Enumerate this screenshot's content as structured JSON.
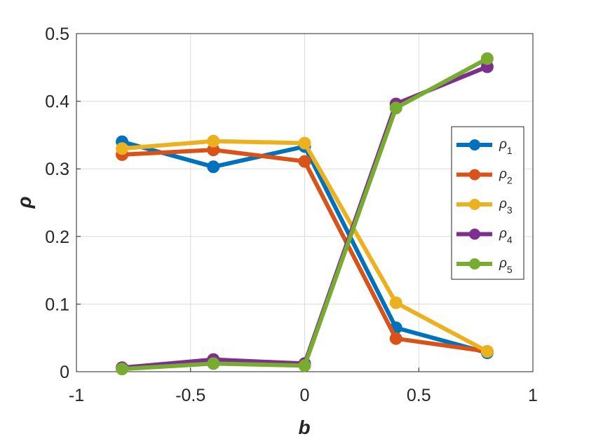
{
  "chart_data": {
    "type": "line",
    "xlabel": "b",
    "ylabel": "ρ",
    "xlim": [
      -1,
      1
    ],
    "ylim": [
      0,
      0.5
    ],
    "xticks": [
      "-1",
      "-0.5",
      "0",
      "0.5",
      "1"
    ],
    "yticks": [
      "0",
      "0.1",
      "0.2",
      "0.3",
      "0.4",
      "0.5"
    ],
    "grid": true,
    "legend_position": "right",
    "x": [
      -0.8,
      -0.4,
      0,
      0.4,
      0.8
    ],
    "series": [
      {
        "name": "ρ",
        "subscript": "1",
        "color": "#0072BD",
        "values": [
          0.34,
          0.303,
          0.333,
          0.065,
          0.028
        ]
      },
      {
        "name": "ρ",
        "subscript": "2",
        "color": "#D95319",
        "values": [
          0.321,
          0.328,
          0.311,
          0.049,
          0.03
        ]
      },
      {
        "name": "ρ",
        "subscript": "3",
        "color": "#EDB120",
        "values": [
          0.33,
          0.341,
          0.338,
          0.102,
          0.03
        ]
      },
      {
        "name": "ρ",
        "subscript": "4",
        "color": "#7E2F8E",
        "values": [
          0.006,
          0.018,
          0.012,
          0.396,
          0.451
        ]
      },
      {
        "name": "ρ",
        "subscript": "5",
        "color": "#77AC30",
        "values": [
          0.004,
          0.012,
          0.009,
          0.39,
          0.463
        ]
      }
    ]
  }
}
